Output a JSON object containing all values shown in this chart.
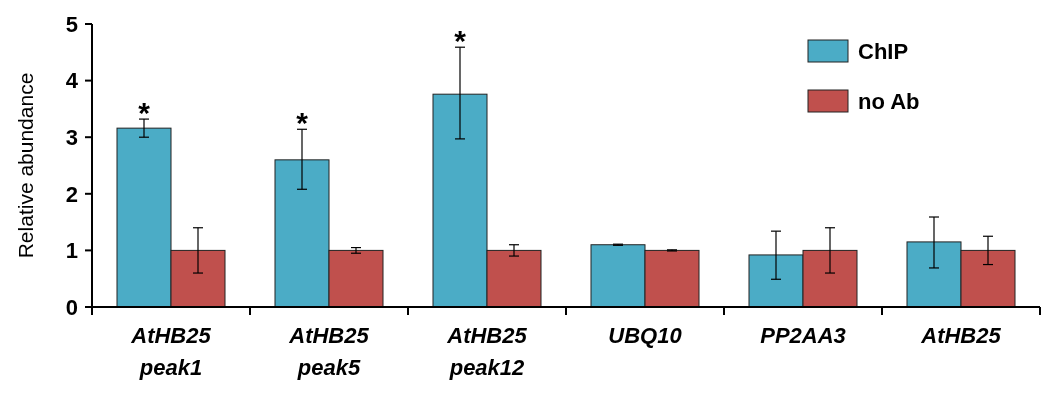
{
  "chart_data": {
    "type": "bar",
    "ylabel": "Relative abundance",
    "categories": [
      "AtHB25 peak1",
      "AtHB25 peak5",
      "AtHB25 peak12",
      "UBQ10",
      "PP2AA3",
      "AtHB25"
    ],
    "series": [
      {
        "name": "ChIP",
        "color": "#4bacc6",
        "values": [
          3.16,
          2.6,
          3.76,
          1.1,
          0.92,
          1.15
        ],
        "errors": [
          [
            3.0,
            3.32
          ],
          [
            2.08,
            3.14
          ],
          [
            2.97,
            4.59
          ],
          [
            1.09,
            1.11
          ],
          [
            0.49,
            1.34
          ],
          [
            0.69,
            1.59
          ]
        ]
      },
      {
        "name": "no Ab",
        "color": "#c0504d",
        "values": [
          1.0,
          1.0,
          1.0,
          1.0,
          1.0,
          1.0
        ],
        "errors": [
          [
            0.6,
            1.4
          ],
          [
            0.95,
            1.05
          ],
          [
            0.9,
            1.1
          ],
          [
            0.99,
            1.01
          ],
          [
            0.6,
            1.4
          ],
          [
            0.75,
            1.25
          ]
        ]
      }
    ],
    "ylim": [
      0,
      5
    ],
    "yticks": [
      0,
      1,
      2,
      3,
      4,
      5
    ],
    "legend": "top right",
    "annotations": [
      "*",
      "*",
      "*"
    ]
  }
}
